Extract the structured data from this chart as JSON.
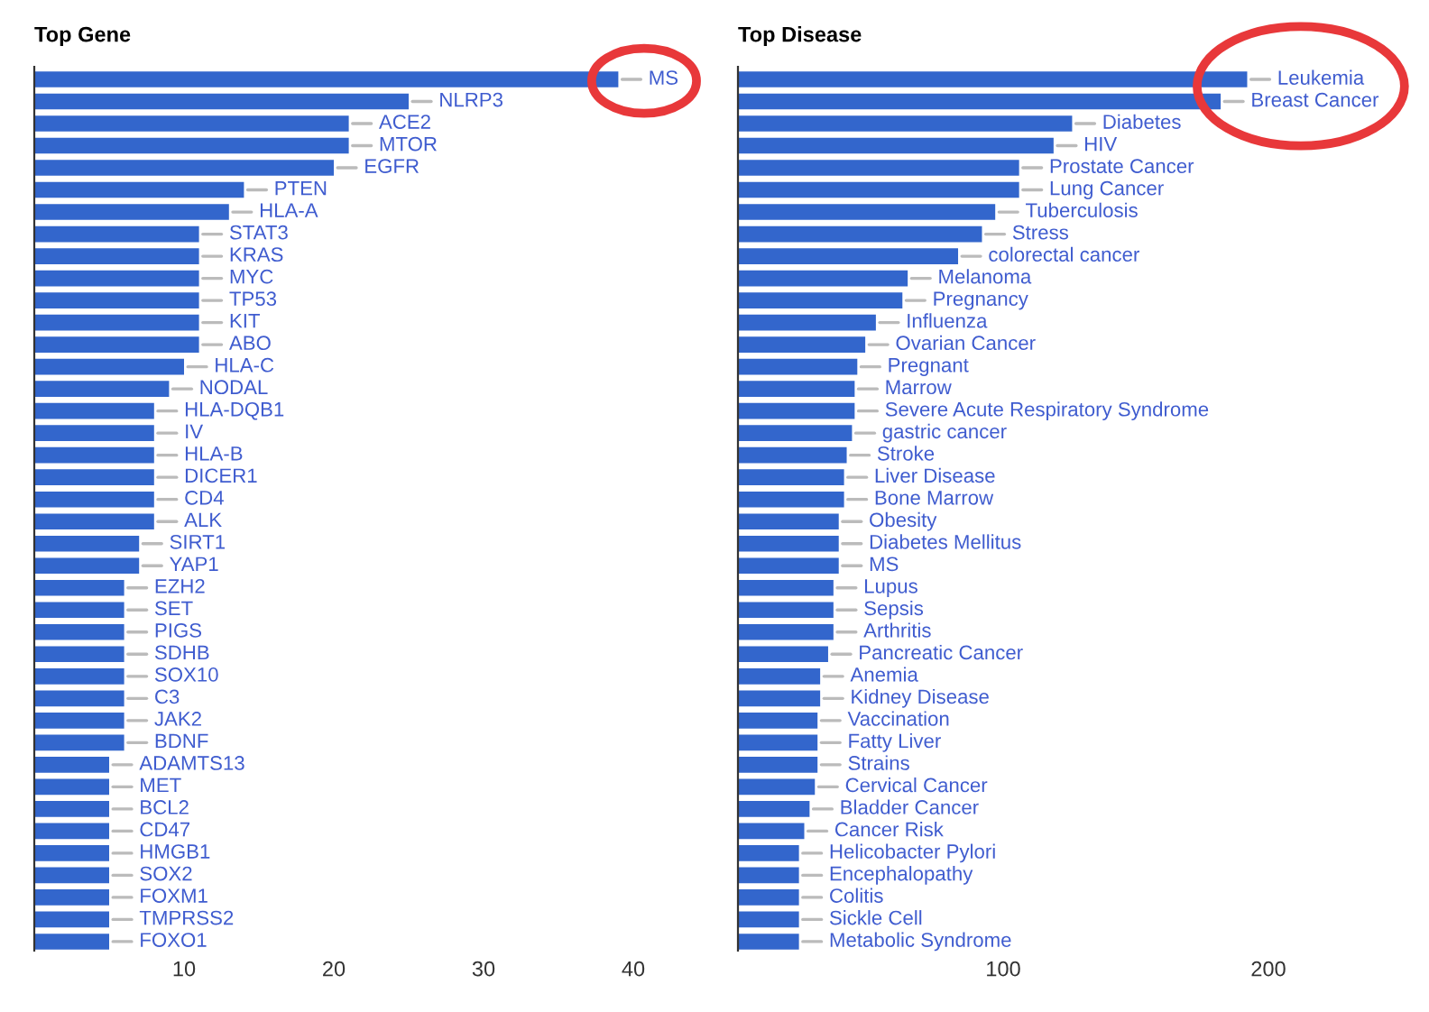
{
  "chart_data": [
    {
      "type": "bar",
      "orientation": "horizontal",
      "title": "Top Gene",
      "categories": [
        "MS",
        "NLRP3",
        "ACE2",
        "MTOR",
        "EGFR",
        "PTEN",
        "HLA-A",
        "STAT3",
        "KRAS",
        "MYC",
        "TP53",
        "KIT",
        "ABO",
        "HLA-C",
        "NODAL",
        "HLA-DQB1",
        "IV",
        "HLA-B",
        "DICER1",
        "CD4",
        "ALK",
        "SIRT1",
        "YAP1",
        "EZH2",
        "SET",
        "PIGS",
        "SDHB",
        "SOX10",
        "C3",
        "JAK2",
        "BDNF",
        "ADAMTS13",
        "MET",
        "BCL2",
        "CD47",
        "HMGB1",
        "SOX2",
        "FOXM1",
        "TMPRSS2",
        "FOXO1"
      ],
      "values": [
        39,
        25,
        21,
        21,
        20,
        14,
        13,
        11,
        11,
        11,
        11,
        11,
        11,
        10,
        9,
        8,
        8,
        8,
        8,
        8,
        8,
        7,
        7,
        6,
        6,
        6,
        6,
        6,
        6,
        6,
        6,
        5,
        5,
        5,
        5,
        5,
        5,
        5,
        5,
        5
      ],
      "color": "#3366cc",
      "xlim": [
        0,
        40
      ],
      "xticks": [
        10,
        20,
        30,
        40
      ]
    },
    {
      "type": "bar",
      "orientation": "horizontal",
      "title": "Top Disease",
      "categories": [
        "Leukemia",
        "Breast Cancer",
        "Diabetes",
        "HIV",
        "Prostate Cancer",
        "Lung Cancer",
        "Tuberculosis",
        "Stress",
        "colorectal cancer",
        "Melanoma",
        "Pregnancy",
        "Influenza",
        "Ovarian Cancer",
        "Pregnant",
        "Marrow",
        "Severe Acute Respiratory Syndrome",
        "gastric cancer",
        "Stroke",
        "Liver Disease",
        "Bone Marrow",
        "Obesity",
        "Diabetes Mellitus",
        "MS",
        "Lupus",
        "Sepsis",
        "Arthritis",
        "Pancreatic Cancer",
        "Anemia",
        "Kidney Disease",
        "Vaccination",
        "Fatty Liver",
        "Strains",
        "Cervical Cancer",
        "Bladder Cancer",
        "Cancer Risk",
        "Helicobacter Pylori",
        "Encephalopathy",
        "Colitis",
        "Sickle Cell",
        "Metabolic Syndrome"
      ],
      "values": [
        192,
        182,
        126,
        119,
        106,
        106,
        97,
        92,
        83,
        64,
        62,
        52,
        48,
        45,
        44,
        44,
        43,
        41,
        40,
        40,
        38,
        38,
        38,
        36,
        36,
        36,
        34,
        31,
        31,
        30,
        30,
        30,
        29,
        27,
        25,
        23,
        23,
        23,
        23,
        23
      ],
      "color": "#3366cc",
      "xlim": [
        0,
        200
      ],
      "xticks": [
        100,
        200
      ]
    }
  ]
}
